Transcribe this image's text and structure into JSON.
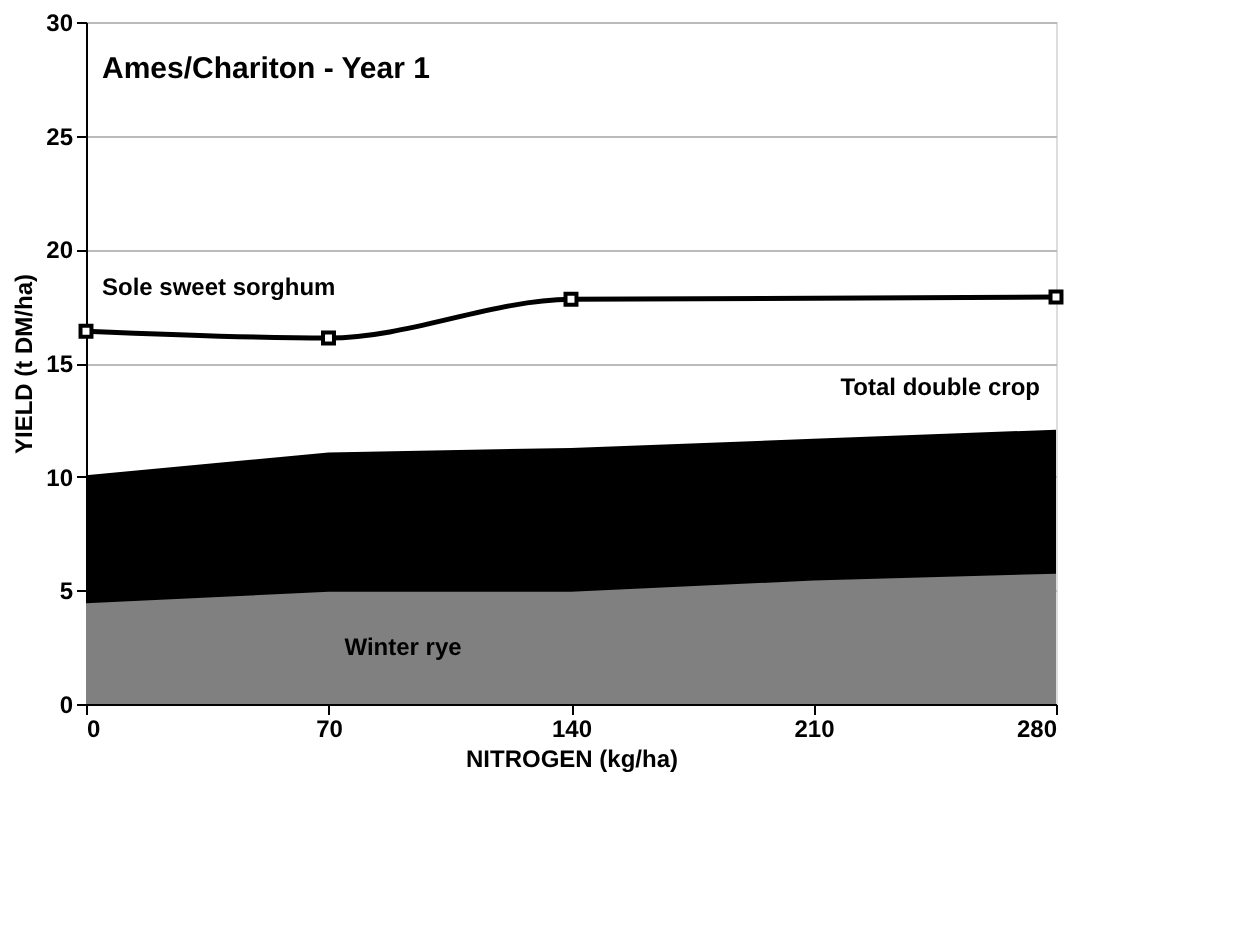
{
  "chart_data": {
    "type": "area",
    "annotations": [
      "Ames/Chariton - Year 1"
    ],
    "xlabel": "NITROGEN (kg/ha)",
    "ylabel": "YIELD (t DM/ha)",
    "x": [
      0,
      70,
      140,
      210,
      280
    ],
    "series": [
      {
        "name": "Total double crop",
        "color": "#000000",
        "values": [
          10,
          11,
          11.2,
          11.6,
          12
        ]
      },
      {
        "name": "Winter rye",
        "color": "#808080",
        "values": [
          4.5,
          5,
          5,
          5.5,
          5.8
        ]
      },
      {
        "name": "Sole sweet sorghum",
        "type": "line",
        "color": "#000000",
        "marker": "square",
        "x": [
          0,
          70,
          140,
          280
        ],
        "values": [
          16.4,
          16.1,
          17.8,
          17.9
        ]
      }
    ],
    "xlim": [
      0,
      280
    ],
    "xticks": [
      0,
      70,
      140,
      210,
      280
    ],
    "ylim": [
      0,
      30
    ],
    "yticks": [
      0,
      5,
      10,
      15,
      20,
      25,
      30
    ],
    "grid": "y"
  }
}
